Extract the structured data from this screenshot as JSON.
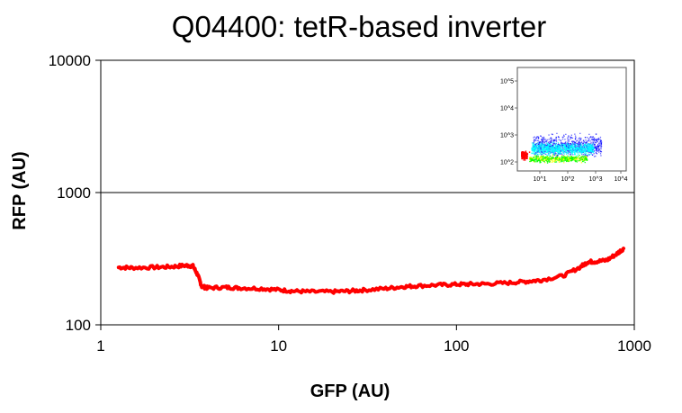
{
  "chart_data": {
    "type": "line",
    "title": "Q04400: tetR-based inverter",
    "xlabel": "GFP (AU)",
    "ylabel": "RFP (AU)",
    "xscale": "log",
    "yscale": "log",
    "xlim": [
      1,
      1000
    ],
    "ylim": [
      100,
      10000
    ],
    "xticks": [
      1,
      10,
      100,
      1000
    ],
    "yticks": [
      100,
      1000,
      10000
    ],
    "x_tick_labels": [
      "1",
      "10",
      "100",
      "1000"
    ],
    "y_tick_labels": [
      "100",
      "1000",
      "10000"
    ],
    "grid": "horizontal at 1000",
    "series": [
      {
        "color": "#ff0000",
        "x": [
          1.26,
          1.5,
          2.0,
          2.5,
          3.0,
          3.3,
          3.5,
          3.7,
          4,
          5,
          6,
          8,
          10,
          12,
          15,
          20,
          25,
          30,
          40,
          50,
          60,
          80,
          100,
          120,
          150,
          200,
          250,
          300,
          400,
          500,
          550,
          600,
          700,
          800,
          870
        ],
        "y": [
          272,
          270,
          272,
          275,
          281,
          278,
          240,
          195,
          190,
          192,
          190,
          188,
          184,
          180,
          178,
          178,
          180,
          183,
          188,
          194,
          197,
          200,
          202,
          203,
          204,
          208,
          213,
          218,
          235,
          275,
          300,
          300,
          308,
          345,
          378
        ]
      }
    ],
    "inset": {
      "type": "scatter-density",
      "x_tick_labels": [
        "10^1",
        "10^2",
        "10^3",
        "10^4"
      ],
      "y_tick_labels": [
        "10^2",
        "10^3",
        "10^4",
        "10^5"
      ],
      "colors": [
        "#0000ff",
        "#00ffff",
        "#00ff00",
        "#ffff00",
        "#ff0000"
      ]
    }
  }
}
